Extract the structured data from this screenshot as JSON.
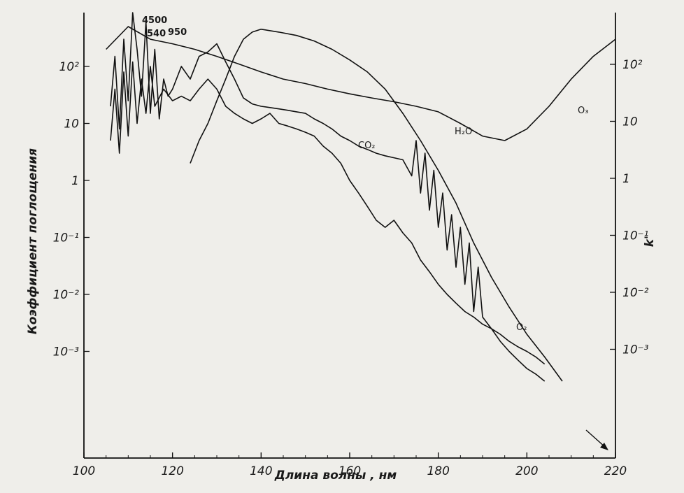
{
  "chart_data": {
    "type": "line",
    "title": "",
    "xlabel": "Длина волны , нм",
    "ylabel": "Коэффициент поглощения",
    "ylabel_right": "k'",
    "xlim": [
      100,
      220
    ],
    "x_ticks": [
      "100",
      "120",
      "140",
      "160",
      "180",
      "200",
      "220"
    ],
    "ylim": [
      0.0002,
      2000
    ],
    "y_scale": "log",
    "y_ticks_left": [
      "10²",
      "10",
      "1",
      "10⁻¹",
      "10⁻²",
      "10⁻³"
    ],
    "y_ticks_right": [
      "10²",
      "10",
      "1",
      "10⁻¹",
      "10⁻²",
      "10⁻³"
    ],
    "grid": false,
    "annotations": [
      "4500",
      "540",
      "950"
    ],
    "series": [
      {
        "name": "O₂",
        "x": [
          106,
          107,
          108,
          109,
          110,
          111,
          112,
          113,
          114,
          115,
          116,
          117,
          118,
          119,
          120,
          122,
          124,
          126,
          128,
          130,
          132,
          134,
          136,
          138,
          140,
          142,
          144,
          146,
          148,
          150,
          152,
          154,
          156,
          158,
          160,
          162,
          164,
          166,
          168,
          170,
          172,
          174,
          175,
          176,
          177,
          178,
          179,
          180,
          181,
          182,
          183,
          184,
          185,
          186,
          187,
          188,
          189,
          190,
          192,
          194,
          196,
          198,
          200,
          202,
          204
        ],
        "y": [
          20,
          150,
          8,
          300,
          25,
          1200,
          200,
          30,
          600,
          15,
          200,
          12,
          60,
          30,
          40,
          100,
          60,
          150,
          180,
          250,
          120,
          60,
          28,
          22,
          20,
          19,
          18,
          17,
          16,
          15,
          12,
          10,
          8,
          6,
          5,
          4,
          3.5,
          3,
          2.7,
          2.5,
          2.3,
          1.2,
          5,
          0.6,
          3,
          0.3,
          1.5,
          0.15,
          0.6,
          0.06,
          0.25,
          0.03,
          0.15,
          0.015,
          0.08,
          0.005,
          0.03,
          0.004,
          0.0025,
          0.0015,
          0.001,
          0.0007,
          0.0005,
          0.0004,
          0.0003
        ]
      },
      {
        "name": "H₂O",
        "x": [
          124,
          126,
          128,
          130,
          132,
          134,
          136,
          138,
          140,
          144,
          148,
          152,
          156,
          160,
          164,
          168,
          172,
          176,
          180,
          184,
          188,
          192,
          196,
          200,
          204,
          208
        ],
        "y": [
          2,
          5,
          10,
          25,
          60,
          150,
          300,
          400,
          450,
          400,
          350,
          280,
          200,
          130,
          80,
          40,
          15,
          5,
          1.5,
          0.4,
          0.08,
          0.02,
          0.006,
          0.002,
          0.0008,
          0.0003
        ]
      },
      {
        "name": "O₃",
        "x": [
          105,
          110,
          115,
          120,
          125,
          130,
          135,
          140,
          145,
          150,
          155,
          160,
          165,
          170,
          175,
          180,
          185,
          190,
          195,
          200,
          205,
          210,
          215,
          220
        ],
        "y": [
          200,
          500,
          300,
          250,
          200,
          150,
          110,
          80,
          60,
          50,
          40,
          33,
          28,
          24,
          20,
          16,
          10,
          6,
          5,
          8,
          20,
          60,
          150,
          300
        ]
      },
      {
        "name": "CO₂",
        "x": [
          106,
          107,
          108,
          109,
          110,
          111,
          112,
          113,
          114,
          115,
          116,
          118,
          120,
          122,
          124,
          126,
          128,
          130,
          132,
          134,
          136,
          138,
          140,
          142,
          144,
          146,
          148,
          150,
          152,
          154,
          156,
          158,
          160,
          162,
          164,
          166,
          168,
          170,
          172,
          174,
          176,
          178,
          180,
          182,
          184,
          186,
          188,
          190,
          192,
          194,
          196,
          198,
          200,
          202,
          204
        ],
        "y": [
          5,
          40,
          3,
          80,
          6,
          120,
          10,
          60,
          15,
          100,
          20,
          40,
          25,
          30,
          25,
          40,
          60,
          40,
          20,
          15,
          12,
          10,
          12,
          15,
          10,
          9,
          8,
          7,
          6,
          4,
          3,
          2,
          1,
          0.6,
          0.35,
          0.2,
          0.15,
          0.2,
          0.12,
          0.08,
          0.04,
          0.025,
          0.015,
          0.01,
          0.007,
          0.005,
          0.004,
          0.003,
          0.0025,
          0.002,
          0.0015,
          0.0012,
          0.001,
          0.0008,
          0.0006
        ]
      }
    ]
  }
}
